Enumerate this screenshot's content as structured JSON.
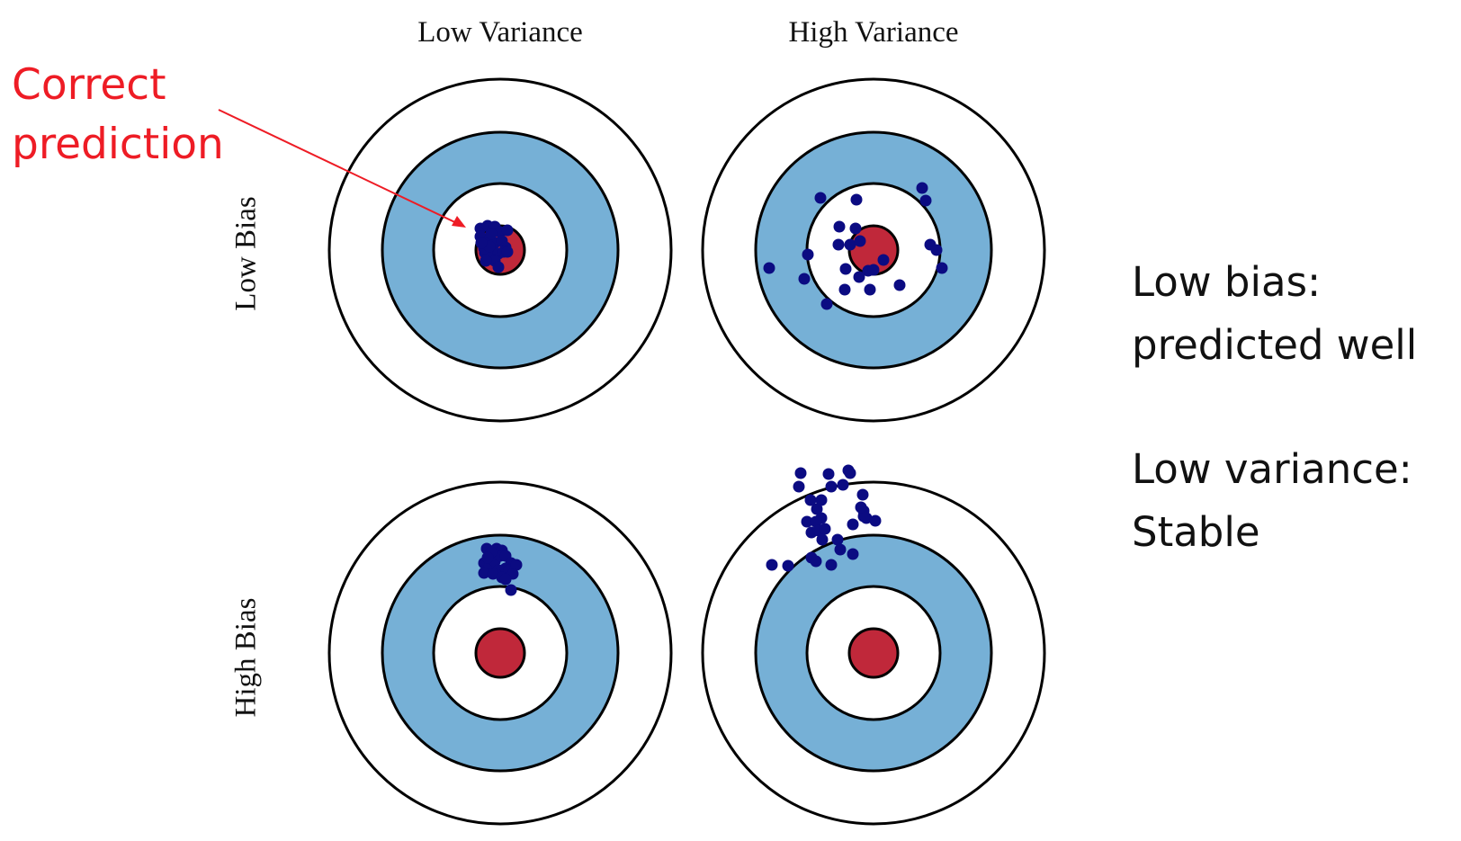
{
  "column_labels": [
    "Low Variance",
    "High Variance"
  ],
  "row_labels": [
    "Low Bias",
    "High Bias"
  ],
  "callout": {
    "line1": "Correct",
    "line2": "prediction",
    "color": "#ee1c25"
  },
  "notes": {
    "bias_line1": "Low bias:",
    "bias_line2": "predicted well",
    "variance_line1": "Low variance:",
    "variance_line2": "Stable"
  },
  "colors": {
    "ring_white": "#ffffff",
    "ring_blue": "#76b0d6",
    "bullseye": "#c0283a",
    "point": "#0b0b82",
    "outline": "#000000"
  }
}
